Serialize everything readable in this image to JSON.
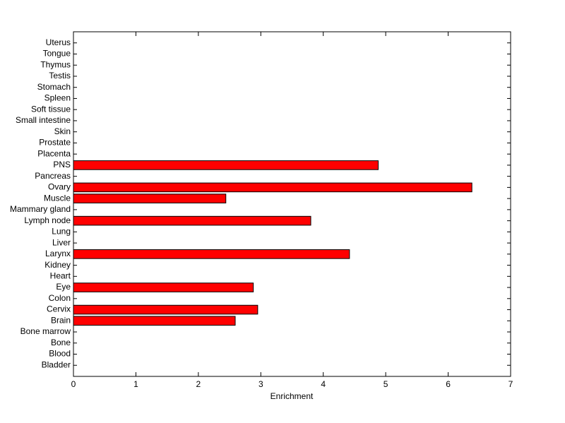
{
  "chart_data": {
    "type": "barh",
    "categories": [
      "Bladder",
      "Blood",
      "Bone",
      "Bone marrow",
      "Brain",
      "Cervix",
      "Colon",
      "Eye",
      "Heart",
      "Kidney",
      "Larynx",
      "Liver",
      "Lung",
      "Lymph node",
      "Mammary gland",
      "Muscle",
      "Ovary",
      "Pancreas",
      "PNS",
      "Placenta",
      "Prostate",
      "Skin",
      "Small intestine",
      "Soft tissue",
      "Spleen",
      "Stomach",
      "Testis",
      "Thymus",
      "Tongue",
      "Uterus"
    ],
    "values": [
      0,
      0,
      0,
      0,
      2.59,
      2.95,
      0,
      2.88,
      0,
      0,
      4.42,
      0,
      0,
      3.8,
      0,
      2.44,
      6.38,
      0,
      4.88,
      0,
      0,
      0,
      0,
      0,
      0,
      0,
      0,
      0,
      0,
      0
    ],
    "color": "#ff0000",
    "xlabel": "Enrichment",
    "xlim": [
      0,
      7
    ],
    "xticks": [
      0,
      1,
      2,
      3,
      4,
      5,
      6,
      7
    ]
  }
}
